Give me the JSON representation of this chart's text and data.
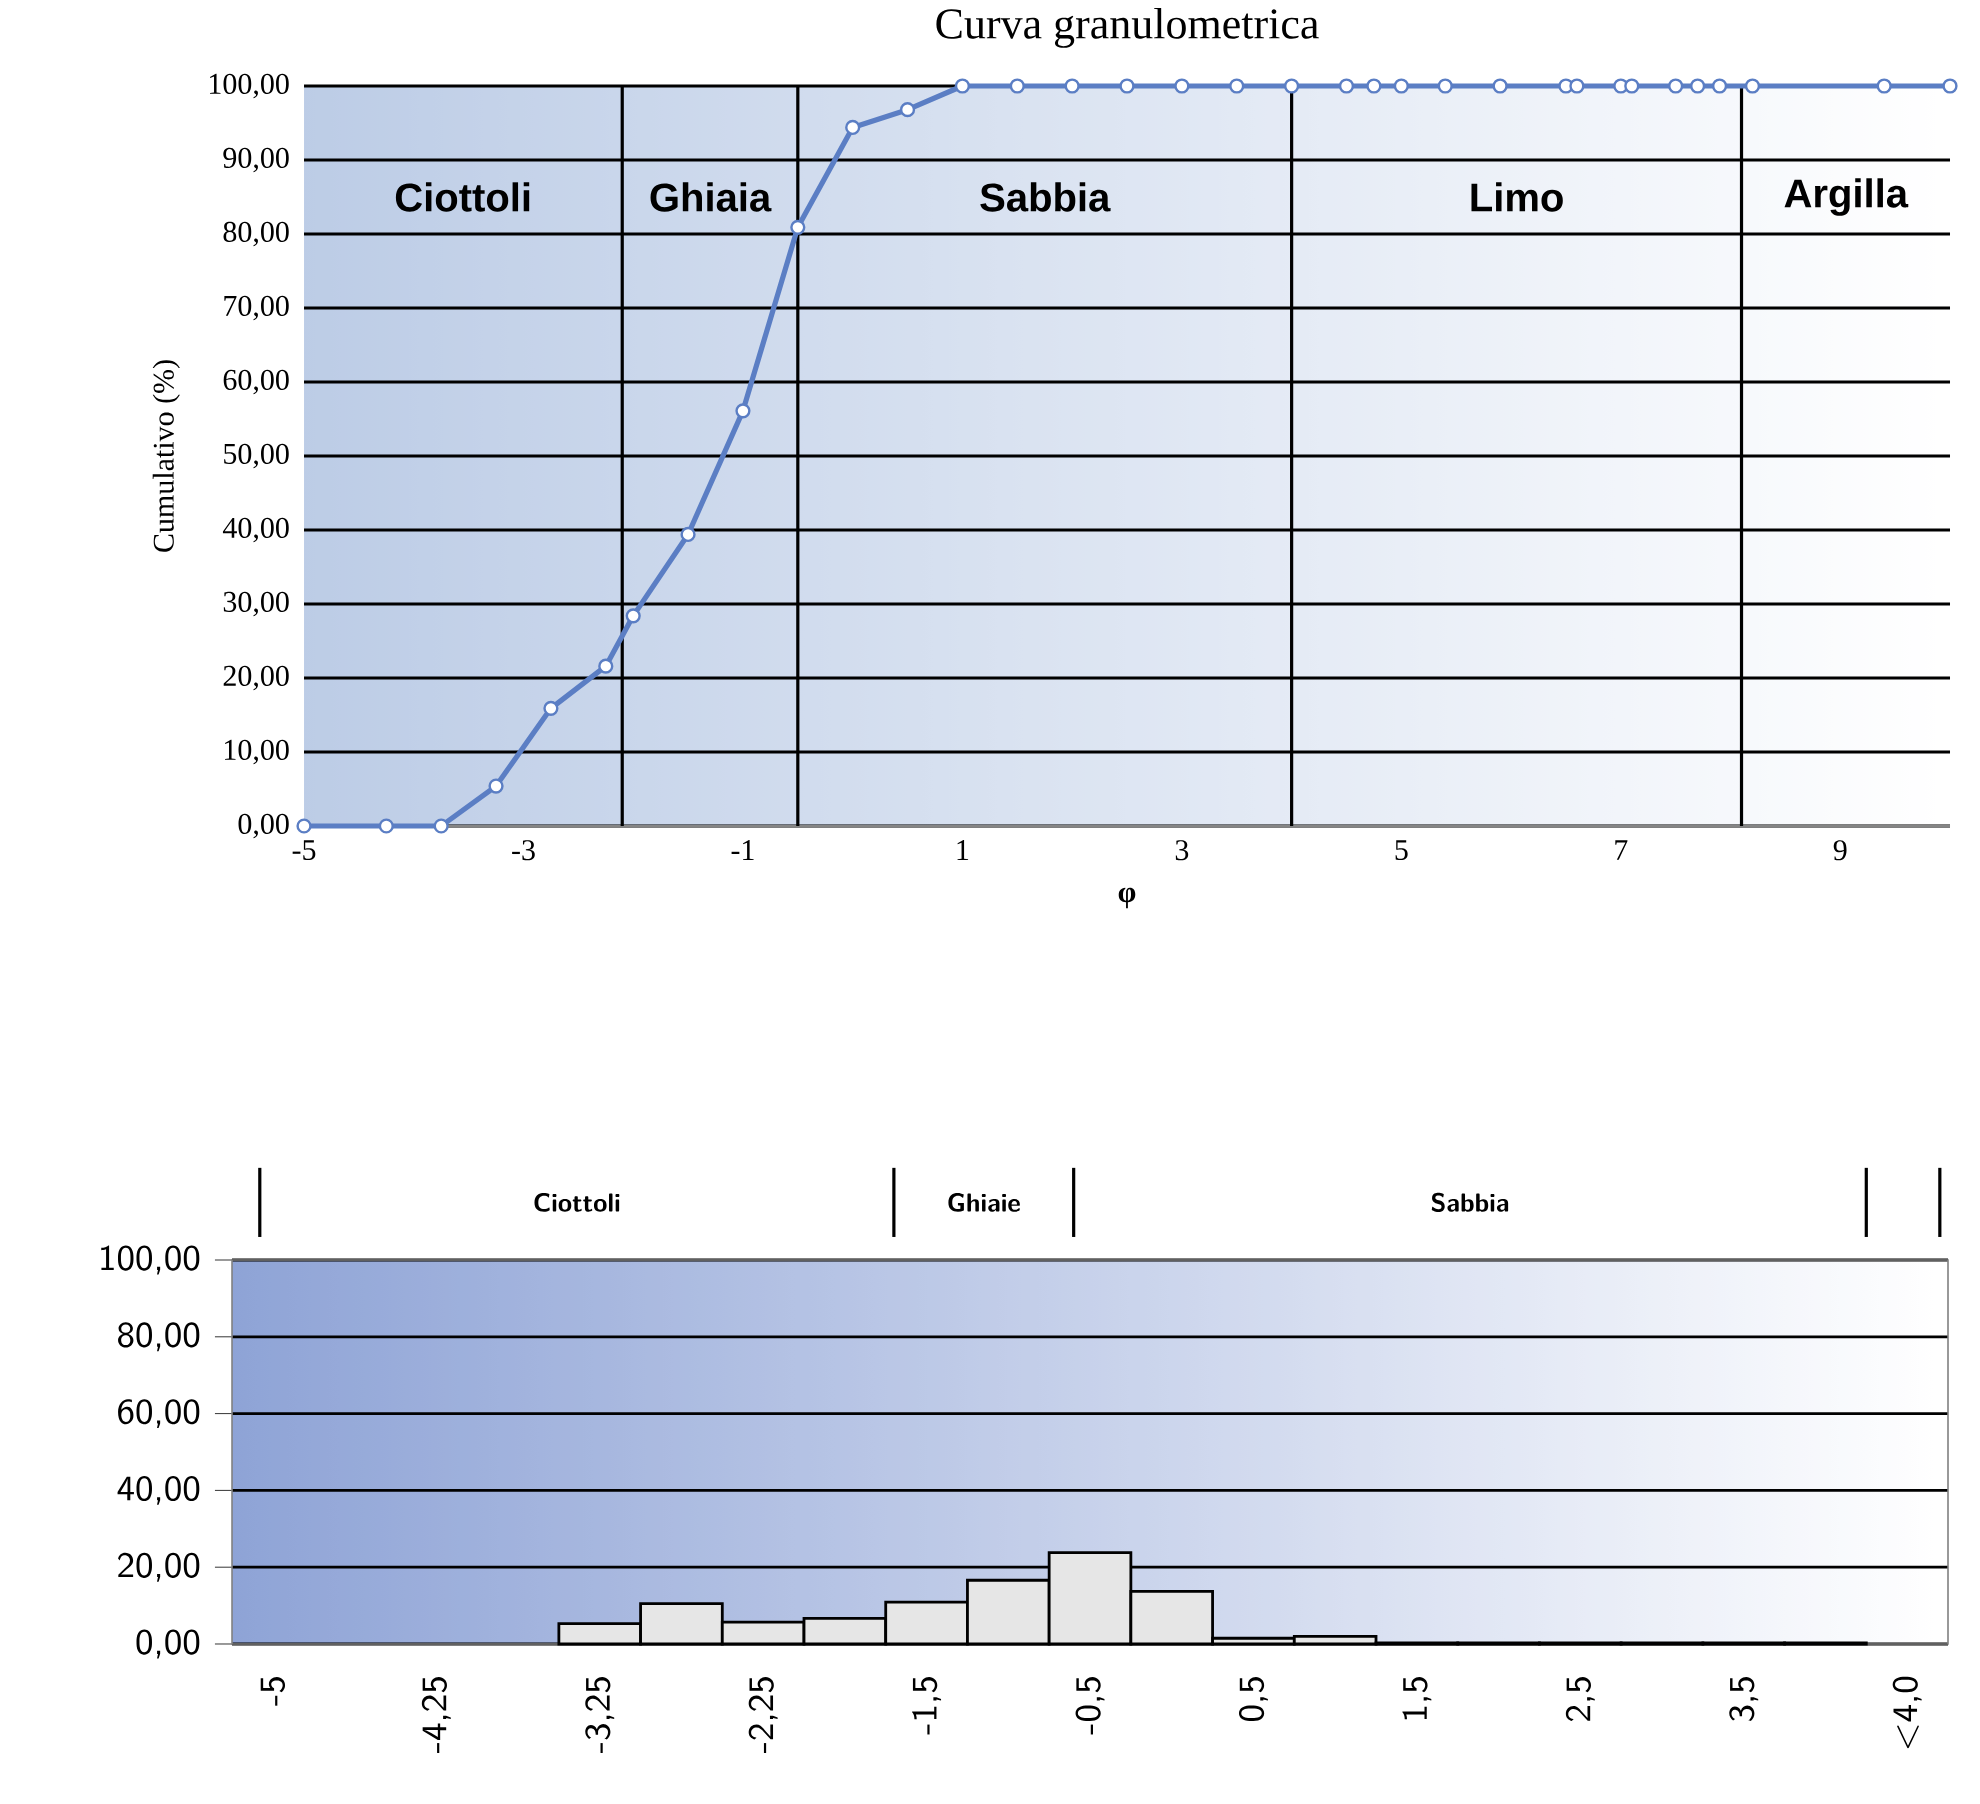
{
  "chart_data": [
    {
      "type": "line",
      "title": "Curva granulometrica",
      "xlabel": "φ",
      "ylabel": "Cumulativo (%)",
      "xlim": [
        -5,
        10
      ],
      "xticks": [
        -5,
        -3,
        -1,
        1,
        3,
        5,
        7,
        9
      ],
      "ylim": [
        0,
        100
      ],
      "yticks": [
        {
          "value": 0,
          "label": "0,00"
        },
        {
          "value": 10,
          "label": "10,00"
        },
        {
          "value": 20,
          "label": "20,00"
        },
        {
          "value": 30,
          "label": "30,00"
        },
        {
          "value": 40,
          "label": "40,00"
        },
        {
          "value": 50,
          "label": "50,00"
        },
        {
          "value": 60,
          "label": "60,00"
        },
        {
          "value": 70,
          "label": "70,00"
        },
        {
          "value": 80,
          "label": "80,00"
        },
        {
          "value": 90,
          "label": "90,00"
        },
        {
          "value": 100,
          "label": "100,00"
        }
      ],
      "grid": "y",
      "marker": "circle",
      "ref_lines": [
        {
          "axis": "x",
          "value": -2.1
        },
        {
          "axis": "x",
          "value": -0.5
        },
        {
          "axis": "x",
          "value": 4
        },
        {
          "axis": "x",
          "value": 8.1
        }
      ],
      "annotations": [
        "Ciottoli",
        "Ghiaia",
        "Sabbia",
        "Limo",
        "Argilla"
      ],
      "series": [
        {
          "color": "#5b7ec4",
          "x": [
            -5,
            -4.25,
            -3.75,
            -3.25,
            -2.75,
            -2.25,
            -2,
            -1.5,
            -1,
            -0.5,
            0,
            0.5,
            1,
            1.5,
            2,
            2.5,
            3,
            3.5,
            4,
            4.5,
            4.75,
            5,
            5.4,
            5.9,
            6.5,
            6.6,
            7,
            7.1,
            7.5,
            7.7,
            7.9,
            8.2,
            9.4,
            10
          ],
          "values": [
            0,
            0,
            0,
            5.4,
            15.9,
            21.6,
            28.4,
            39.4,
            56.1,
            80.9,
            94.4,
            96.8,
            100,
            100,
            100,
            100,
            100,
            100,
            100,
            100,
            100,
            100,
            100,
            100,
            100,
            100,
            100,
            100,
            100,
            100,
            100,
            100,
            100,
            100
          ]
        }
      ]
    },
    {
      "type": "bar",
      "categories": [
        "-5",
        null,
        "-4,25",
        null,
        "-3,25",
        null,
        "-2,25",
        null,
        "-1,5",
        null,
        "-0,5",
        null,
        "0,5",
        null,
        "1,5",
        null,
        "2,5",
        null,
        "3,5",
        null,
        "<4,0"
      ],
      "values": [
        null,
        null,
        null,
        null,
        5.3,
        10.5,
        5.7,
        6.7,
        10.9,
        16.6,
        23.8,
        13.7,
        1.5,
        2.0,
        0.3,
        0.3,
        0.3,
        0.3,
        0.3,
        0.3,
        null
      ],
      "color": "#e6e6e6",
      "ylim": [
        0,
        100
      ],
      "yticks": [
        {
          "value": 0,
          "label": "0,00"
        },
        {
          "value": 20,
          "label": "20,00"
        },
        {
          "value": 40,
          "label": "40,00"
        },
        {
          "value": 60,
          "label": "60,00"
        },
        {
          "value": 80,
          "label": "80,00"
        },
        {
          "value": 100,
          "label": "100,00"
        }
      ],
      "grid": "y",
      "annotations": [
        "Ciottoli",
        "Ghiaie",
        "Sabbia"
      ]
    }
  ]
}
